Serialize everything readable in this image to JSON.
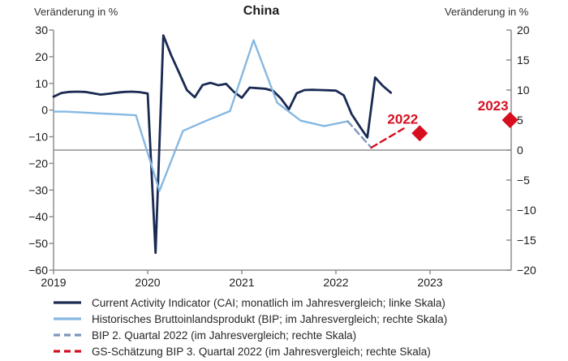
{
  "chart_data": {
    "type": "line",
    "title": "China",
    "left_axis": {
      "label": "Veränderung in %",
      "ticks": [
        30,
        20,
        10,
        0,
        -10,
        -20,
        -30,
        -40,
        -50,
        -60
      ],
      "range": [
        30,
        -60
      ]
    },
    "right_axis": {
      "label": "Veränderung in %",
      "ticks": [
        20,
        15,
        10,
        5,
        0,
        -5,
        -10,
        -15,
        -20
      ],
      "range": [
        20,
        -20
      ]
    },
    "x_axis": {
      "ticks": [
        2019,
        2020,
        2021,
        2022,
        2023
      ]
    },
    "zero_reference_line": {
      "axis": "right",
      "value": 0
    },
    "series": [
      {
        "id": "cai",
        "label": "Current Activity Indicator (CAI; monatlich im Jahresvergleich; linke Skala)",
        "axis": "left",
        "dash": false,
        "color": "#1a2a52",
        "width": 2.8,
        "x_start": 2019.0,
        "x_step": 0.083333,
        "values": [
          5.0,
          6.4,
          6.8,
          6.9,
          6.8,
          6.3,
          5.8,
          6.1,
          6.5,
          6.8,
          6.9,
          6.7,
          6.2,
          -53.5,
          28,
          20.5,
          14,
          7.5,
          4.8,
          9.4,
          10.2,
          9.3,
          9.8,
          6.8,
          4.6,
          8.4,
          8.2,
          8.0,
          7.2,
          4.3,
          0.3,
          6.3,
          7.5,
          7.6,
          7.5,
          7.4,
          7.3,
          5.5,
          -1.5,
          -6.0,
          -10.3,
          12.2,
          9.0,
          6.5
        ]
      },
      {
        "id": "gdp-historical",
        "label": "Historisches Bruttoinlandsprodukt (BIP; im Jahresvergleich; rechte Skala)",
        "axis": "right",
        "dash": false,
        "color": "#85b8e2",
        "width": 2.4,
        "x": [
          2019.0,
          2019.125,
          2019.375,
          2019.625,
          2019.875,
          2020.125,
          2020.375,
          2020.625,
          2020.875,
          2021.125,
          2021.375,
          2021.625,
          2021.875,
          2022.125
        ],
        "values": [
          6.4,
          6.4,
          6.2,
          6.0,
          5.8,
          -6.8,
          3.2,
          4.9,
          6.5,
          18.3,
          7.9,
          4.9,
          4.0,
          4.8
        ]
      },
      {
        "id": "bip-q2-2022",
        "label": "BIP 2. Quartal 2022 (im Jahresvergleich; rechte Skala)",
        "axis": "right",
        "dash": true,
        "color": "#7d97bd",
        "width": 2.4,
        "x": [
          2022.125,
          2022.375
        ],
        "values": [
          4.8,
          0.4
        ]
      },
      {
        "id": "gs-schaetzung-q3-2022",
        "label": "GS-Schätzung BIP 3. Quartal 2022 (im Jahresvergleich; rechte Skala)",
        "axis": "right",
        "dash": true,
        "color": "#d60e20",
        "width": 2.4,
        "x": [
          2022.375,
          2022.72
        ],
        "values": [
          0.4,
          3.6
        ]
      }
    ],
    "forecast_markers": [
      {
        "label": "2022",
        "x": 2022.89,
        "value": 2.8,
        "axis": "right"
      },
      {
        "label": "2023",
        "x": 2023.85,
        "value": 5.0,
        "axis": "right"
      }
    ],
    "colors": {
      "marker_red": "#d60e20",
      "axis_gray": "#8f8f8f",
      "tick_text": "#1a1a1a"
    }
  }
}
